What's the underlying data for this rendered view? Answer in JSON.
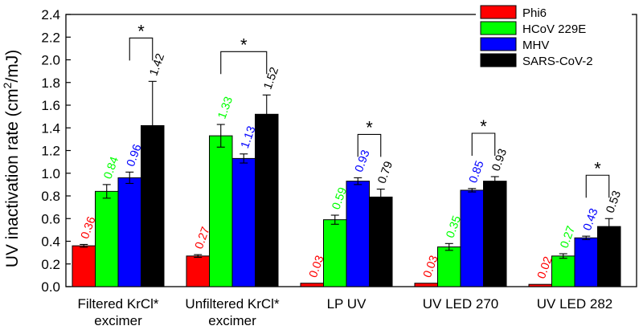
{
  "chart_data": {
    "type": "bar",
    "ylabel": "UV inactivation rate (cm²/mJ)",
    "ylabel_parts": {
      "main": "UV inactivation rate (cm",
      "sup": "2",
      "tail": "/mJ)"
    },
    "ylim": [
      0,
      2.4
    ],
    "yticks": [
      "0.0",
      "0.2",
      "0.4",
      "0.6",
      "0.8",
      "1.0",
      "1.2",
      "1.4",
      "1.6",
      "1.8",
      "2.0",
      "2.2",
      "2.4"
    ],
    "categories": [
      {
        "lines": [
          "Filtered KrCl*",
          "excimer"
        ]
      },
      {
        "lines": [
          "Unfiltered KrCl*",
          "excimer"
        ]
      },
      {
        "lines": [
          "LP UV"
        ]
      },
      {
        "lines": [
          "UV LED 270"
        ]
      },
      {
        "lines": [
          "UV LED 282"
        ]
      }
    ],
    "series": [
      {
        "name": "Phi6",
        "color": "#ff0000",
        "values": [
          0.36,
          0.27,
          0.03,
          0.03,
          0.02
        ],
        "errors": [
          0.012,
          0.012,
          0.0,
          0.0,
          0.0
        ],
        "labels": [
          "0.36",
          "0.27",
          "0.03",
          "0.03",
          "0.02"
        ]
      },
      {
        "name": "HCoV 229E",
        "color": "#00ff00",
        "values": [
          0.84,
          1.33,
          0.59,
          0.35,
          0.27
        ],
        "errors": [
          0.06,
          0.1,
          0.04,
          0.03,
          0.02
        ],
        "labels": [
          "0.84",
          "1.33",
          "0.59",
          "0.35",
          "0.27"
        ]
      },
      {
        "name": "MHV",
        "color": "#0000ff",
        "values": [
          0.96,
          1.13,
          0.93,
          0.85,
          0.43
        ],
        "errors": [
          0.05,
          0.04,
          0.03,
          0.015,
          0.015
        ],
        "labels": [
          "0.96",
          "1.13",
          "0.93",
          "0.85",
          "0.43"
        ]
      },
      {
        "name": "SARS-CoV-2",
        "color": "#000000",
        "values": [
          1.42,
          1.52,
          0.79,
          0.93,
          0.53
        ],
        "errors": [
          0.39,
          0.17,
          0.07,
          0.04,
          0.07
        ],
        "labels": [
          "1.42",
          "1.52",
          "0.79",
          "0.93",
          "0.53"
        ]
      }
    ],
    "label_colors": [
      "#ff0000",
      "#00ff00",
      "#0000ff",
      "#000000"
    ],
    "significance": [
      {
        "category": 0,
        "from_series": 2,
        "to_series": 3,
        "mark": "*"
      },
      {
        "category": 1,
        "from_series": 1,
        "to_series": 3,
        "mark": "*"
      },
      {
        "category": 2,
        "from_series": 2,
        "to_series": 3,
        "mark": "*"
      },
      {
        "category": 3,
        "from_series": 2,
        "to_series": 3,
        "mark": "*"
      },
      {
        "category": 4,
        "from_series": 2,
        "to_series": 3,
        "mark": "*"
      }
    ],
    "legend_position": "top-right"
  }
}
